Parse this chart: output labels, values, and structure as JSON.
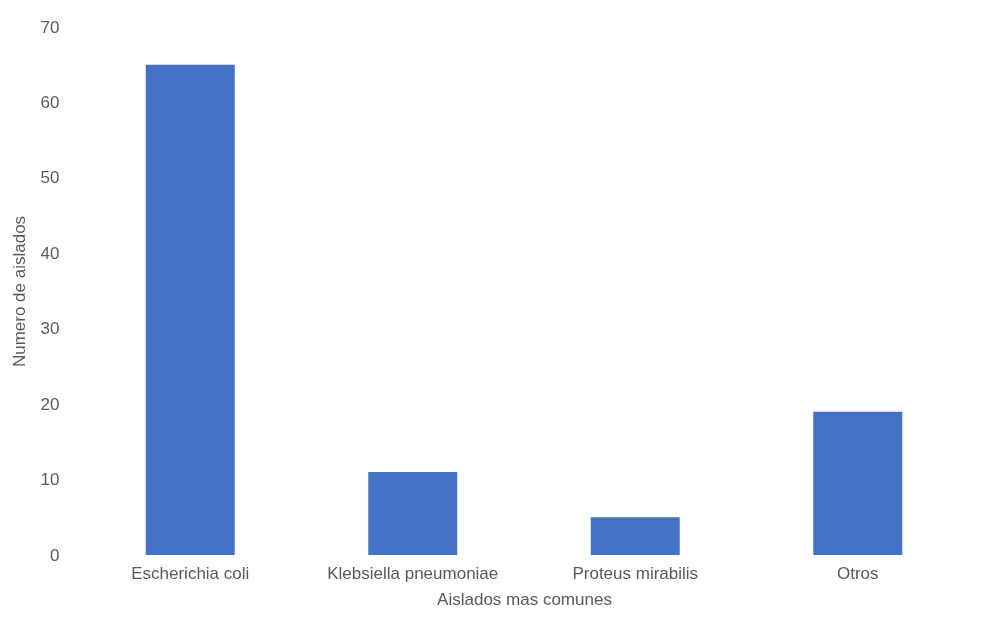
{
  "chart_data": {
    "type": "bar",
    "xlabel": "Aislados mas comunes",
    "ylabel": "Numero de aislados",
    "categories": [
      "Escherichia coli",
      "Klebsiella pneumoniae",
      "Proteus mirabilis",
      "Otros"
    ],
    "values": [
      65,
      11,
      5,
      19
    ],
    "color": "#4472c4",
    "ylim": [
      0,
      70
    ],
    "yticks": [
      0,
      10,
      20,
      30,
      40,
      50,
      60,
      70
    ],
    "grid": false
  }
}
